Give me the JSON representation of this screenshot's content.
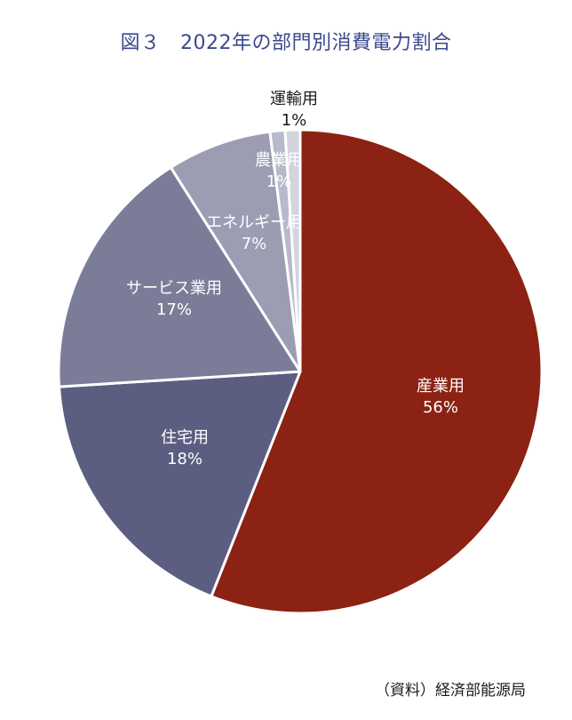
{
  "title": "図３　2022年の部門別消費電力割合",
  "source": "（資料）経済部能源局",
  "chart_data": {
    "type": "pie",
    "title": "図３　2022年の部門別消費電力割合",
    "slices": [
      {
        "name": "産業用",
        "value": 56,
        "value_label": "56%",
        "color": "#8b2213",
        "label_color": "#ffffff"
      },
      {
        "name": "住宅用",
        "value": 18,
        "value_label": "18%",
        "color": "#5b5e80",
        "label_color": "#ffffff"
      },
      {
        "name": "サービス業用",
        "value": 17,
        "value_label": "17%",
        "color": "#7b7d98",
        "label_color": "#ffffff"
      },
      {
        "name": "エネルギー用",
        "value": 7,
        "value_label": "7%",
        "color": "#9c9db3",
        "label_color": "#ffffff"
      },
      {
        "name": "農業用",
        "value": 1,
        "value_label": "1%",
        "color": "#b8b9ca",
        "label_color": "#ffffff"
      },
      {
        "name": "運輸用",
        "value": 1,
        "value_label": "1%",
        "color": "#d3d4de",
        "label_color": "#1a1a1a"
      }
    ],
    "start": "12 o'clock",
    "direction": "clockwise",
    "legend": "none"
  }
}
